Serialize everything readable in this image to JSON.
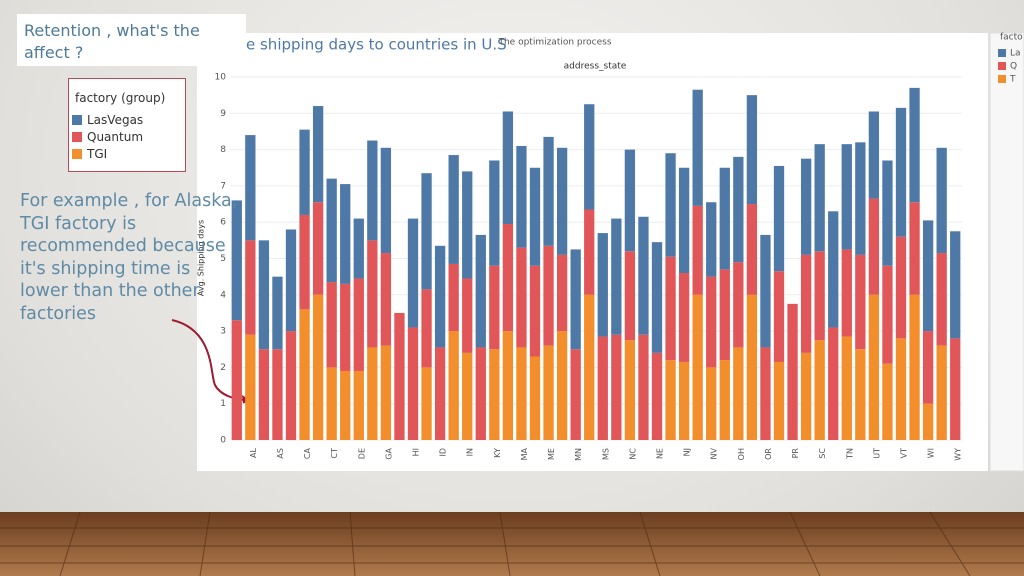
{
  "slide": {
    "title": "Retention , what's the affect ?",
    "note": [
      "For example , for Alaska,",
      "TGI factory is",
      "recommended because",
      "it's shipping time is",
      "lower than the other",
      "factories"
    ],
    "legend_title": "factory (group)",
    "side_legend": {
      "title": "facto",
      "entries": [
        "La",
        "Q",
        "T"
      ]
    }
  },
  "chart_data": {
    "type": "stacked_bar",
    "title": "e shipping days to countries in U.S",
    "subtitle": "The optimization process",
    "x_header": "address_state",
    "y_label": "Avg. Shipping days",
    "categories": [
      null,
      "AL",
      null,
      "AS",
      null,
      "CA",
      null,
      "CT",
      null,
      "DE",
      null,
      "GA",
      null,
      "HI",
      null,
      "ID",
      null,
      "IN",
      null,
      "KY",
      null,
      "MA",
      null,
      "ME",
      null,
      "MN",
      null,
      "MS",
      null,
      "NC",
      null,
      "NE",
      null,
      "NJ",
      null,
      "NV",
      null,
      "OH",
      null,
      "OR",
      null,
      "PR",
      null,
      "SC",
      null,
      "TN",
      null,
      "UT",
      null,
      "VT",
      null,
      "WI",
      null,
      "WY"
    ],
    "series": [
      {
        "name": "TGI",
        "color": "#f28e2b",
        "values": [
          0,
          2.9,
          0,
          0,
          0,
          3.6,
          4.0,
          2.0,
          1.9,
          1.9,
          2.55,
          2.6,
          0,
          0,
          2.0,
          0,
          3.0,
          2.4,
          0,
          2.5,
          3.0,
          2.55,
          2.3,
          2.6,
          3.0,
          0,
          4.0,
          0,
          0,
          2.75,
          0,
          0,
          2.2,
          2.15,
          4.0,
          2.0,
          2.2,
          2.55,
          4.0,
          0,
          2.15,
          0,
          2.4,
          2.75,
          0,
          2.85,
          2.5,
          4.0,
          2.1,
          2.8,
          4.0,
          1.0,
          2.6,
          0
        ]
      },
      {
        "name": "Quantum",
        "color": "#e15759",
        "values": [
          3.3,
          2.6,
          2.5,
          2.5,
          3.0,
          2.6,
          2.55,
          2.35,
          2.4,
          2.55,
          2.95,
          2.55,
          3.5,
          3.1,
          2.15,
          2.55,
          1.85,
          2.05,
          2.55,
          2.3,
          2.95,
          2.75,
          2.5,
          2.75,
          2.1,
          2.5,
          2.35,
          2.85,
          2.9,
          2.45,
          2.9,
          2.4,
          2.85,
          2.45,
          2.45,
          2.5,
          2.5,
          2.35,
          2.5,
          2.55,
          2.5,
          3.75,
          2.7,
          2.45,
          3.1,
          2.4,
          2.6,
          2.65,
          2.7,
          2.8,
          2.55,
          2.0,
          2.55,
          2.8
        ]
      },
      {
        "name": "LasVegas",
        "color": "#4e79a7",
        "values": [
          3.3,
          2.9,
          3.0,
          2.0,
          2.8,
          2.35,
          2.65,
          2.85,
          2.75,
          1.65,
          2.75,
          2.9,
          0,
          3.0,
          3.2,
          2.8,
          3.0,
          2.95,
          3.1,
          2.9,
          3.1,
          2.8,
          2.7,
          3.0,
          2.95,
          2.75,
          2.9,
          2.85,
          3.2,
          2.8,
          3.25,
          3.05,
          2.85,
          2.9,
          3.2,
          2.05,
          2.8,
          2.9,
          3.0,
          3.1,
          2.9,
          0,
          2.65,
          2.95,
          3.2,
          2.9,
          3.1,
          2.4,
          2.9,
          3.55,
          3.15,
          3.05,
          2.9,
          2.95
        ]
      }
    ],
    "legend_order": [
      2,
      1,
      0
    ],
    "ylim": [
      0,
      10
    ],
    "yticks": [
      0,
      1,
      2,
      3,
      4,
      5,
      6,
      7,
      8,
      9,
      10
    ],
    "grid": true
  }
}
